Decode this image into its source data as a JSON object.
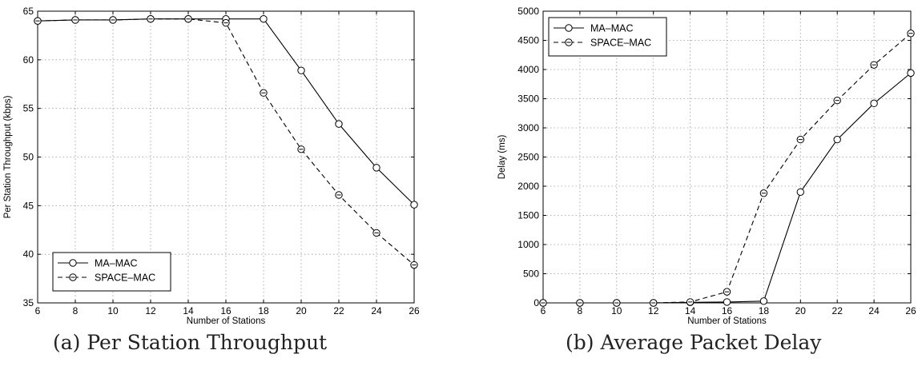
{
  "chart_data": [
    {
      "type": "line",
      "caption": "(a) Per Station Throughput",
      "xlabel": "Number of Stations",
      "ylabel": "Per Station Throughput (kbps)",
      "xlim": [
        6,
        26
      ],
      "ylim": [
        35,
        65
      ],
      "xticks": [
        6,
        8,
        10,
        12,
        14,
        16,
        18,
        20,
        22,
        24,
        26
      ],
      "yticks": [
        35,
        40,
        45,
        50,
        55,
        60,
        65
      ],
      "grid": true,
      "legend_position": "bottom-left",
      "x": [
        6,
        8,
        10,
        12,
        14,
        16,
        18,
        20,
        22,
        24,
        26
      ],
      "series": [
        {
          "name": "MA–MAC",
          "style": "solid",
          "values": [
            64.0,
            64.1,
            64.1,
            64.2,
            64.2,
            64.2,
            64.2,
            58.9,
            53.4,
            48.9,
            45.1
          ]
        },
        {
          "name": "SPACE–MAC",
          "style": "dashed",
          "values": [
            64.0,
            64.1,
            64.1,
            64.2,
            64.2,
            63.8,
            56.6,
            50.8,
            46.1,
            42.2,
            38.9
          ]
        }
      ]
    },
    {
      "type": "line",
      "caption": "(b) Average Packet Delay",
      "xlabel": "Number of Stations",
      "ylabel": "Delay (ms)",
      "xlim": [
        6,
        26
      ],
      "ylim": [
        0,
        5000
      ],
      "xticks": [
        6,
        8,
        10,
        12,
        14,
        16,
        18,
        20,
        22,
        24,
        26
      ],
      "yticks": [
        0,
        500,
        1000,
        1500,
        2000,
        2500,
        3000,
        3500,
        4000,
        4500,
        5000
      ],
      "grid": true,
      "legend_position": "top-left",
      "x": [
        6,
        8,
        10,
        12,
        14,
        16,
        18,
        20,
        22,
        24,
        26
      ],
      "series": [
        {
          "name": "MA–MAC",
          "style": "solid",
          "values": [
            0,
            0,
            0,
            0,
            10,
            15,
            30,
            1900,
            2800,
            3420,
            3940
          ]
        },
        {
          "name": "SPACE–MAC",
          "style": "dashed",
          "values": [
            0,
            0,
            0,
            0,
            15,
            190,
            1880,
            2800,
            3470,
            4080,
            4620
          ]
        }
      ]
    }
  ]
}
